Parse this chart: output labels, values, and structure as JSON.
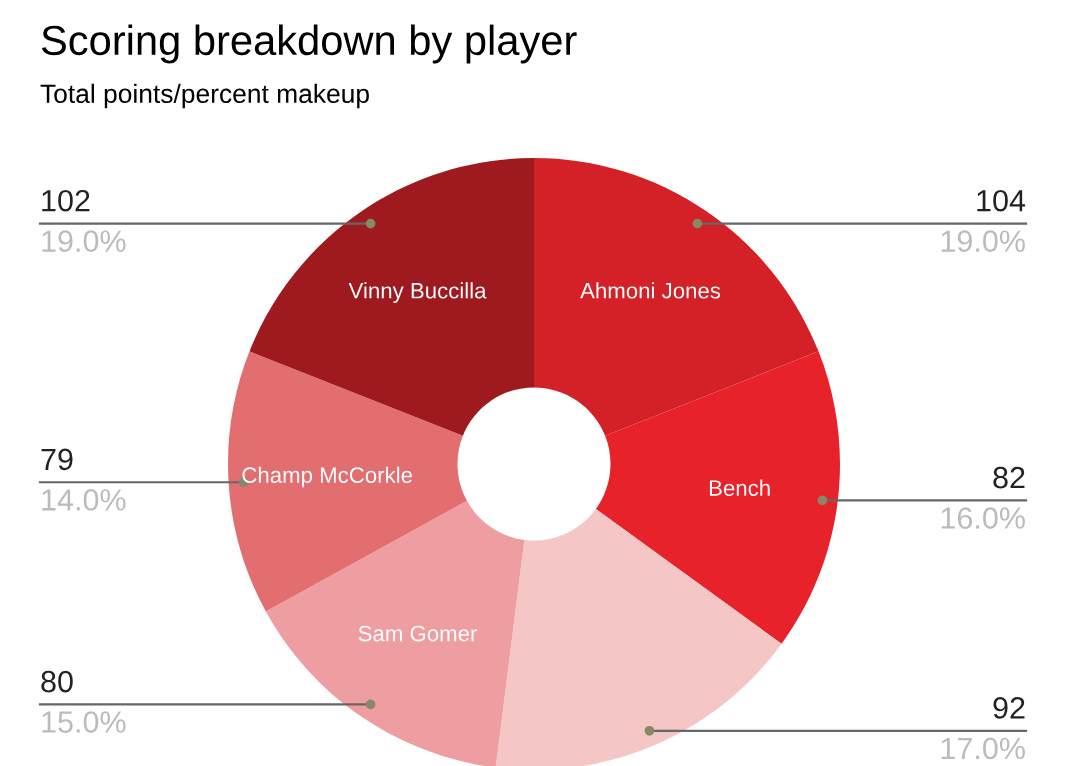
{
  "chart_data": {
    "type": "donut",
    "title": "Scoring breakdown by player",
    "subtitle": "Total points/percent makeup",
    "categories": [
      "Ahmoni Jones",
      "Bench",
      null,
      "Sam Gomer",
      "Champ McCorkle",
      "Vinny Buccilla"
    ],
    "values": [
      19,
      16,
      17,
      15,
      14,
      19
    ],
    "colors": [
      "#d42027",
      "#e8222a",
      "#f4c6c6",
      "#ee9ea0",
      "#e26e70",
      "#9e1a1e"
    ],
    "value_labels": [
      "104\n19.0%",
      "82\n16.0%",
      "92\n17.0%",
      "80\n15.0%",
      "79\n14.0%",
      "102\n19.0%"
    ],
    "legend": false
  }
}
